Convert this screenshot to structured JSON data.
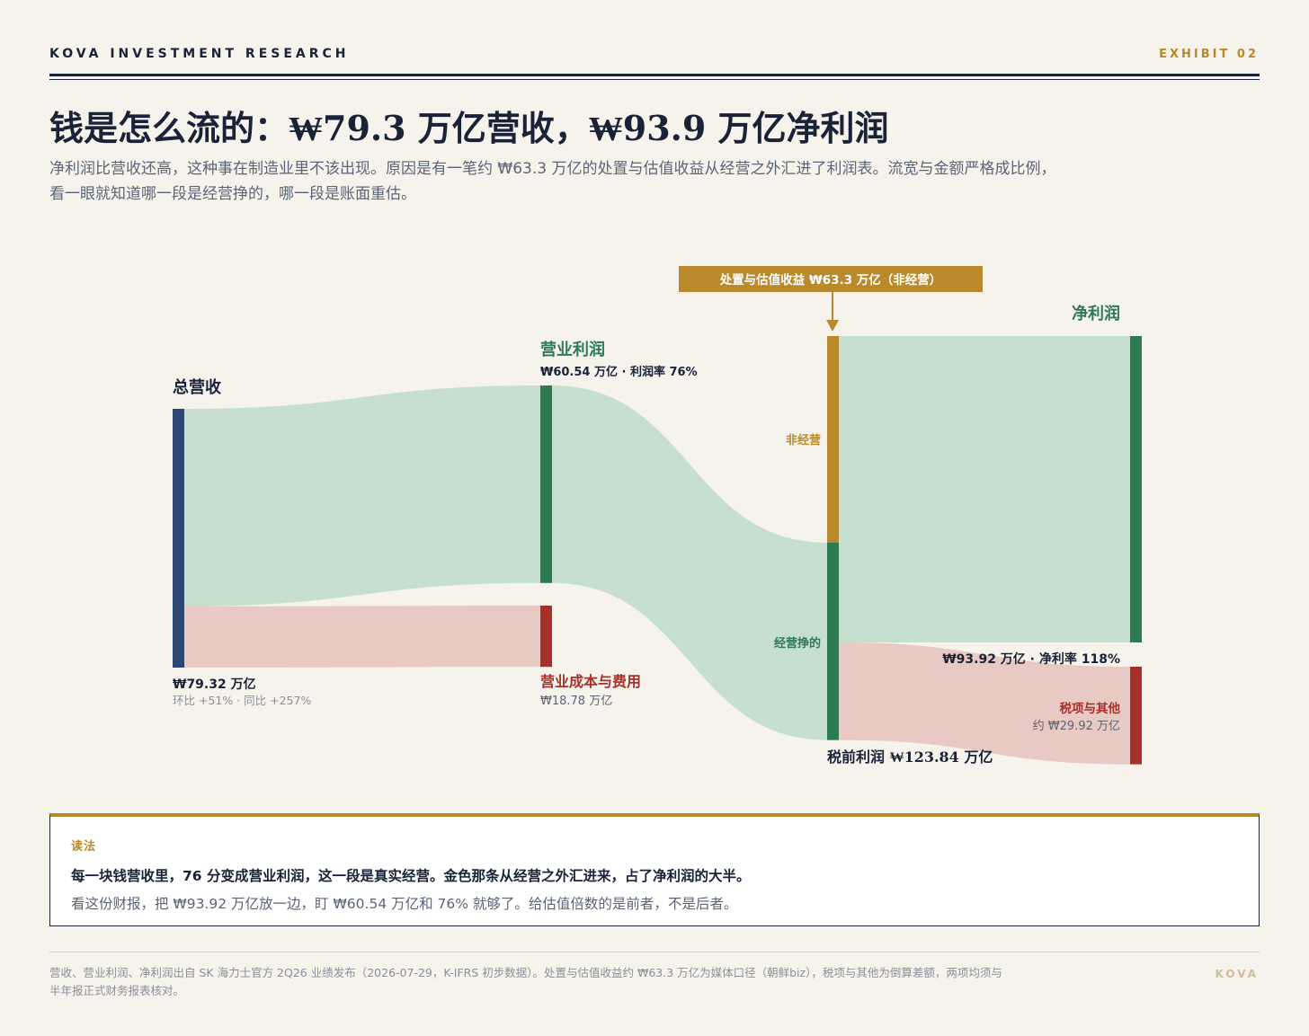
{
  "header": {
    "brand": "KOVA INVESTMENT RESEARCH",
    "exhibit": "EXHIBIT 02",
    "title": "钱是怎么流的：₩79.3 万亿营收，₩93.9 万亿净利润",
    "subtitle": "净利润比营收还高，这种事在制造业里不该出现。原因是有一笔约 ₩63.3 万亿的处置与估值收益从经营之外汇进了利润表。流宽与金额严格成比例，看一眼就知道哪一段是经营挣的，哪一段是账面重估。"
  },
  "chart_data": {
    "type": "sankey",
    "unit": "万亿韩元",
    "nodes": [
      {
        "id": "revenue",
        "label": "总营收",
        "value": 79.32,
        "value_label": "₩79.32 万亿",
        "sub_label": "环比 +51% · 同比 +257%",
        "color": "#2c4770"
      },
      {
        "id": "op_profit",
        "label": "营业利润",
        "value": 60.54,
        "value_label": "₩60.54 万亿 · 利润率 76%",
        "color": "#2e7a52"
      },
      {
        "id": "op_cost",
        "label": "营业成本与费用",
        "value": 18.78,
        "value_label": "₩18.78 万亿",
        "color": "#a8302a"
      },
      {
        "id": "pretax",
        "label": "税前利润 ₩123.84 万亿",
        "value": 123.84,
        "segment_labels": [
          "非经营",
          "经营挣的"
        ]
      },
      {
        "id": "net_profit",
        "label": "净利润",
        "value": 93.92,
        "value_label": "₩93.92 万亿 · 净利率 118%",
        "color": "#2e7a52"
      },
      {
        "id": "tax_other",
        "label": "税项与其他",
        "value": 29.92,
        "value_label": "约 ₩29.92 万亿",
        "color": "#a8302a"
      }
    ],
    "links": [
      {
        "source": "revenue",
        "target": "op_profit",
        "value": 60.54,
        "kind": "profit"
      },
      {
        "source": "revenue",
        "target": "op_cost",
        "value": 18.78,
        "kind": "cost"
      },
      {
        "source": "op_profit",
        "target": "pretax",
        "value": 60.54,
        "kind": "profit"
      },
      {
        "source": "pretax",
        "target": "net_profit",
        "value": 93.92,
        "kind": "profit"
      },
      {
        "source": "pretax",
        "target": "tax_other",
        "value": 29.92,
        "kind": "cost"
      }
    ],
    "inflow": {
      "label": "处置与估值收益 ₩63.3 万亿（非经营）",
      "value": 63.3,
      "target": "pretax",
      "color": "#b88a2c"
    },
    "colors": {
      "profit_flow": "#c6dfcf",
      "cost_flow": "#e8c9c3",
      "gold": "#b88a2c",
      "green": "#2e7a52",
      "red": "#a8302a",
      "navy": "#2c4770"
    }
  },
  "reading": {
    "tag": "读法",
    "lead": "每一块钱营收里，76 分变成营业利润，这一段是真实经营。金色那条从经营之外汇进来，占了净利润的大半。",
    "body": "看这份财报，把 ₩93.92 万亿放一边，盯 ₩60.54 万亿和 76% 就够了。给估值倍数的是前者，不是后者。"
  },
  "footer": {
    "note": "营收、营业利润、净利润出自 SK 海力士官方 2Q26 业绩发布（2026-07-29，K-IFRS 初步数据）。处置与估值收益约 ₩63.3 万亿为媒体口径（朝鲜biz），税项与其他为倒算差额，两项均须与半年报正式财务报表核对。",
    "brand": "KOVA"
  }
}
